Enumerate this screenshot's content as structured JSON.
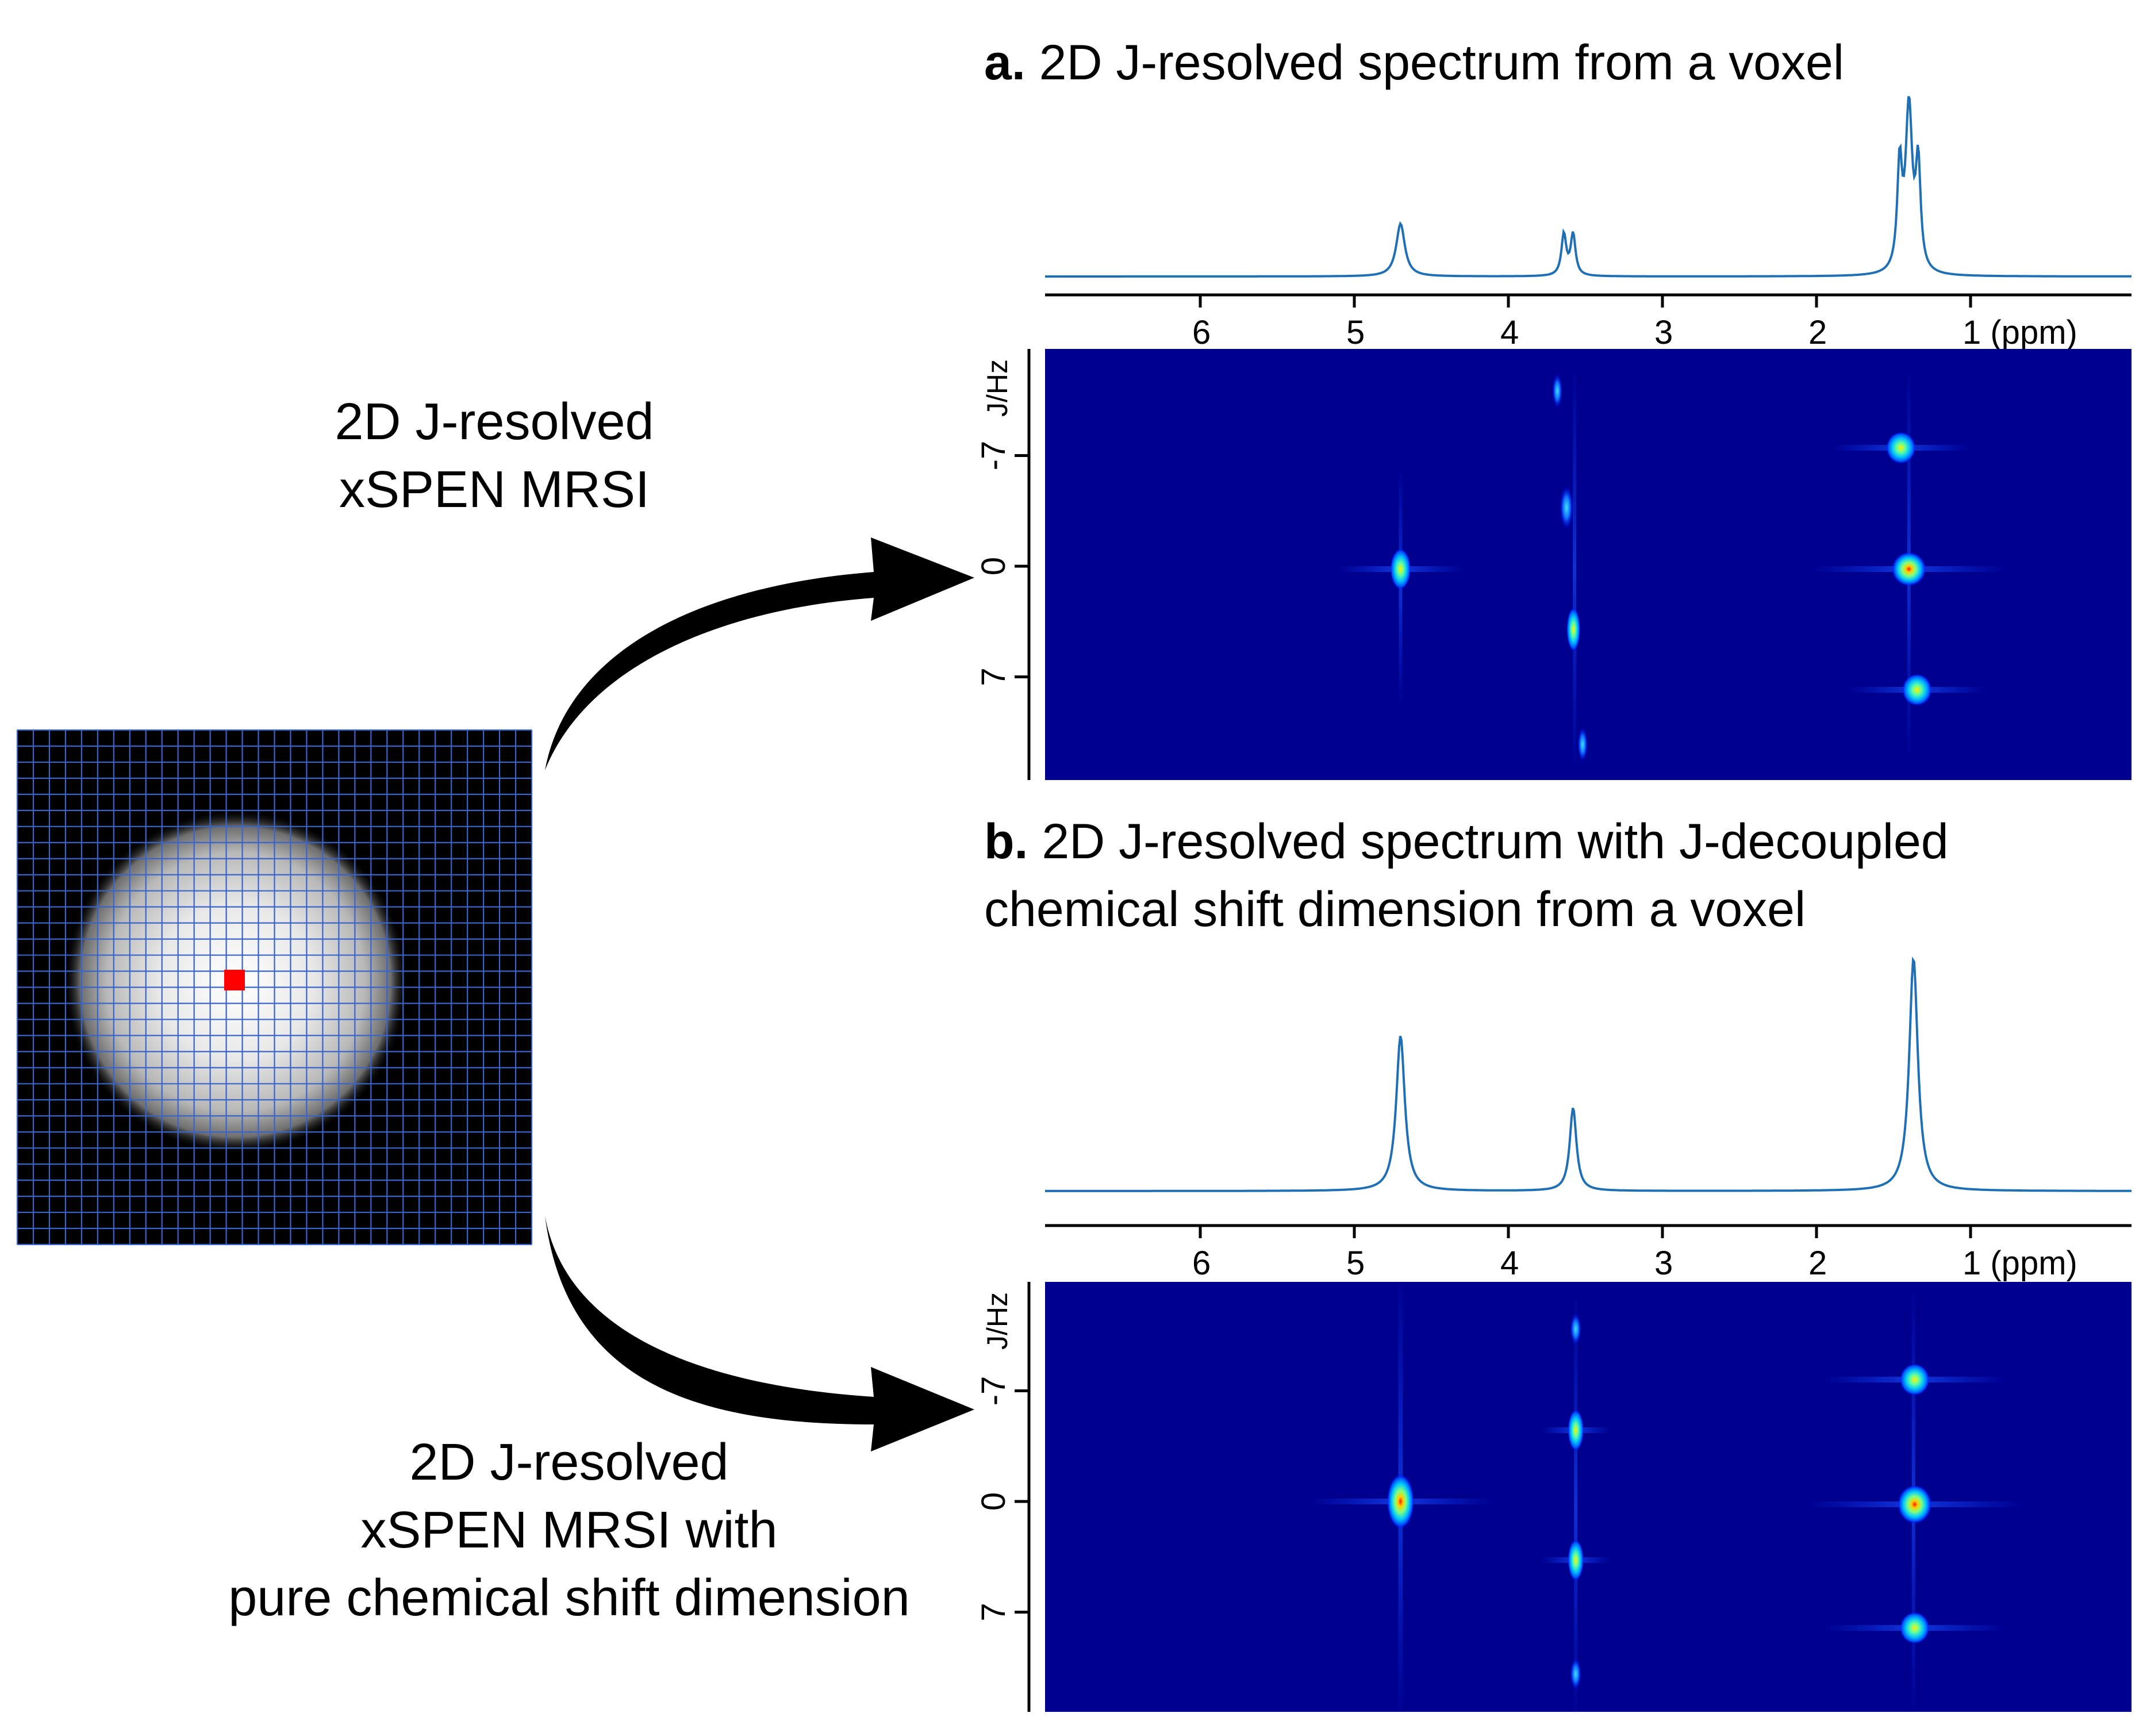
{
  "methods": {
    "top": [
      "2D J-resolved",
      "xSPEN MRSI"
    ],
    "bottom": [
      "2D J-resolved",
      "xSPEN MRSI with",
      "pure chemical shift dimension"
    ]
  },
  "panels": [
    {
      "letter": "a.",
      "title": [
        "2D J-resolved spectrum from a voxel"
      ],
      "ppm_ticks": [
        "6",
        "5",
        "4",
        "3",
        "2",
        "1 (ppm)"
      ],
      "j_ticks": [
        "-7",
        "0",
        "7"
      ],
      "j_axis_label": "J/Hz"
    },
    {
      "letter": "b.",
      "title": [
        "2D J-resolved spectrum with J-decoupled",
        "chemical shift dimension from a voxel"
      ],
      "ppm_ticks": [
        "6",
        "5",
        "4",
        "3",
        "2",
        "1 (ppm)"
      ],
      "j_ticks": [
        "-7",
        "0",
        "7"
      ],
      "j_axis_label": "J/Hz"
    }
  ],
  "colors": {
    "spectrum_line": "#1f6fb4",
    "map_background": "#00008f",
    "grid_lines": "#3a64c8",
    "selected_voxel": "#ff0000",
    "arrow": "#000000"
  }
}
